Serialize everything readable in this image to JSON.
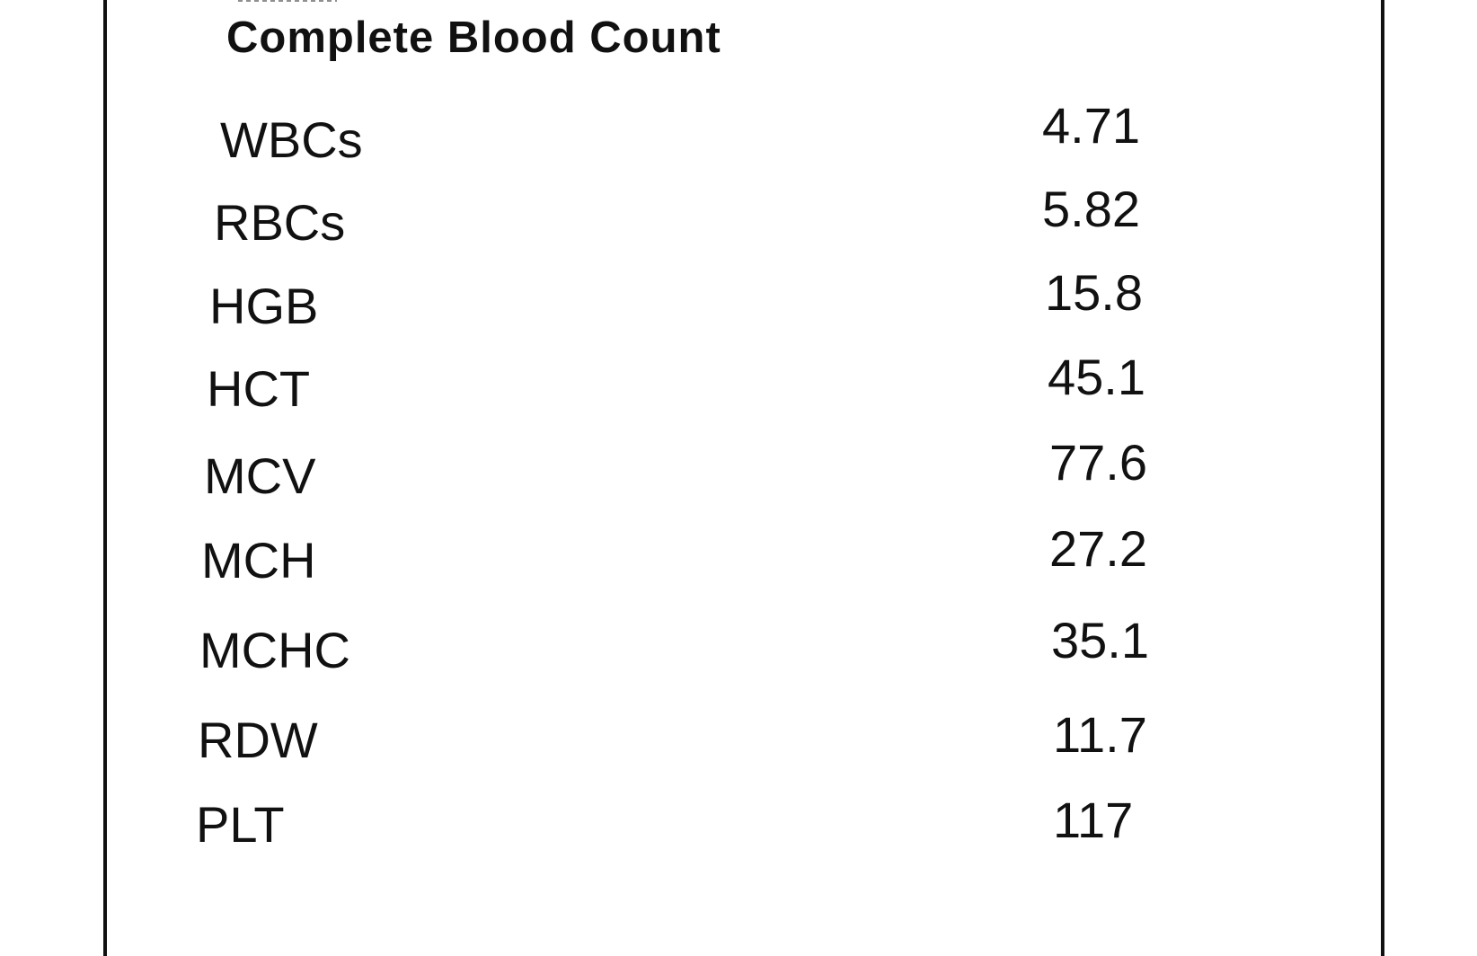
{
  "section_title": "Complete Blood Count",
  "results": [
    {
      "name": "WBCs",
      "value": "4.71"
    },
    {
      "name": "RBCs",
      "value": "5.82"
    },
    {
      "name": "HGB",
      "value": "15.8"
    },
    {
      "name": "HCT",
      "value": "45.1"
    },
    {
      "name": "MCV",
      "value": "77.6"
    },
    {
      "name": "MCH",
      "value": "27.2"
    },
    {
      "name": "MCHC",
      "value": "35.1"
    },
    {
      "name": "RDW",
      "value": "11.7"
    },
    {
      "name": "PLT",
      "value": "117"
    }
  ]
}
